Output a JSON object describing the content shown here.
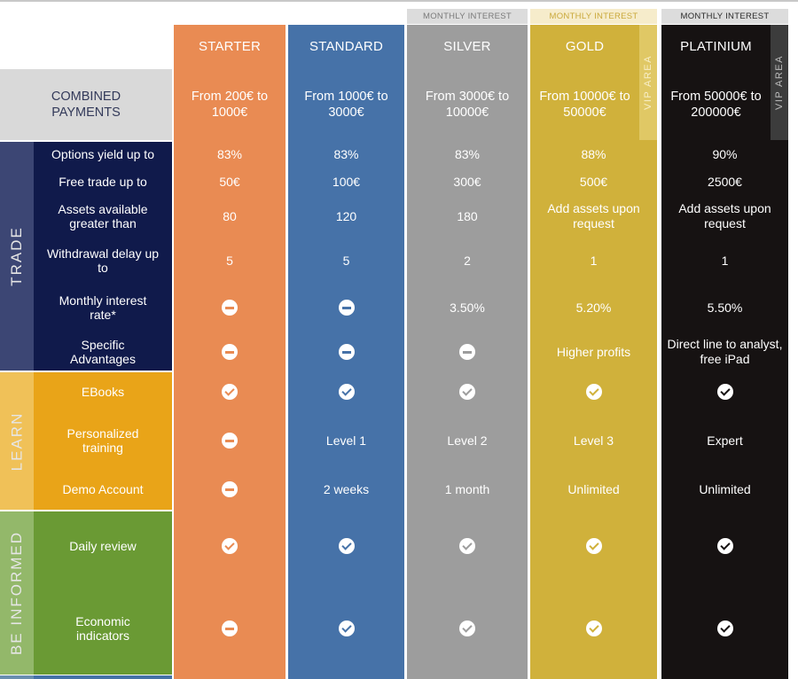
{
  "colors": {
    "starter": "#e98b53",
    "standard": "#4672a8",
    "silver": "#9d9d9d",
    "gold": "#d0b13b",
    "platinium": "#161212",
    "trade": "#101a4b",
    "learn": "#e9a418",
    "inform": "#6a9a34"
  },
  "monthly_interest_label": "MONTHLY INTEREST",
  "vip_label": "VIP AREA",
  "combined_payments": "COMBINED PAYMENTS",
  "sections": {
    "trade": "TRADE",
    "learn": "LEARN",
    "inform": "BE INFORMED"
  },
  "row_labels": {
    "yield": "Options yield up to",
    "free_trade": "Free trade up to",
    "assets": "Assets available greater than",
    "withdrawal": "Withdrawal delay up to",
    "interest": "Monthly interest rate*",
    "advantages": "Specific Advantages",
    "ebooks": "EBooks",
    "training": "Personalized training",
    "demo": "Demo Account",
    "daily_review": "Daily review",
    "indicators": "Economic indicators"
  },
  "plans": {
    "starter": {
      "name": "STARTER",
      "range": "From 200€ to 1000€",
      "yield": "83%",
      "free_trade": "50€",
      "assets": "80",
      "withdrawal": "5",
      "interest": "minus-icon",
      "advantages": "minus-icon",
      "ebooks": "check-icon",
      "training": "minus-icon",
      "demo": "minus-icon",
      "daily_review": "check-icon",
      "indicators": "minus-icon"
    },
    "standard": {
      "name": "STANDARD",
      "range": "From 1000€ to 3000€",
      "yield": "83%",
      "free_trade": "100€",
      "assets": "120",
      "withdrawal": "5",
      "interest": "minus-icon",
      "advantages": "minus-icon",
      "ebooks": "check-icon",
      "training": "Level 1",
      "demo": "2 weeks",
      "daily_review": "check-icon",
      "indicators": "check-icon"
    },
    "silver": {
      "name": "SILVER",
      "range": "From 3000€ to 10000€",
      "yield": "83%",
      "free_trade": "300€",
      "assets": "180",
      "withdrawal": "2",
      "interest": "3.50%",
      "advantages": "minus-icon",
      "ebooks": "check-icon",
      "training": "Level 2",
      "demo": "1 month",
      "daily_review": "check-icon",
      "indicators": "check-icon"
    },
    "gold": {
      "name": "GOLD",
      "range": "From 10000€ to 50000€",
      "yield": "88%",
      "free_trade": "500€",
      "assets": "Add assets upon request",
      "withdrawal": "1",
      "interest": "5.20%",
      "advantages": "Higher profits",
      "ebooks": "check-icon",
      "training": "Level 3",
      "demo": "Unlimited",
      "daily_review": "check-icon",
      "indicators": "check-icon"
    },
    "platinium": {
      "name": "PLATINIUM",
      "range": "From 50000€ to 200000€",
      "yield": "90%",
      "free_trade": "2500€",
      "assets": "Add assets upon request",
      "withdrawal": "1",
      "interest": "5.50%",
      "advantages": "Direct line to analyst, free iPad",
      "ebooks": "check-icon",
      "training": "Expert",
      "demo": "Unlimited",
      "daily_review": "check-icon",
      "indicators": "check-icon"
    }
  }
}
